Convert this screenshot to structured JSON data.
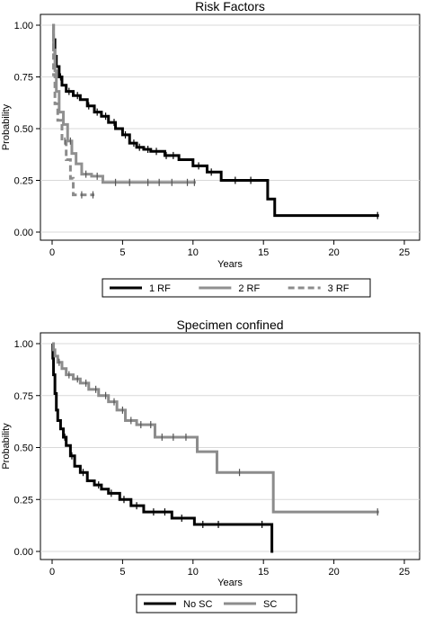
{
  "chart_data": [
    {
      "type": "line",
      "step": true,
      "title": "Risk Factors",
      "xlabel": "Years",
      "ylabel": "Probability",
      "xlim": [
        0,
        25
      ],
      "ylim": [
        0,
        1
      ],
      "xticks": [
        "0",
        "5",
        "10",
        "15",
        "20",
        "25"
      ],
      "yticks": [
        "0.00",
        "0.25",
        "0.50",
        "0.75",
        "1.00"
      ],
      "grid": true,
      "legend_position": "bottom",
      "series": [
        {
          "name": "1 RF",
          "color": "#000000",
          "dash": "solid",
          "x": [
            0,
            0.1,
            0.2,
            0.3,
            0.5,
            0.7,
            1.0,
            1.5,
            2.0,
            2.5,
            3.0,
            3.5,
            4.0,
            4.5,
            5.0,
            5.5,
            6.0,
            6.5,
            7.0,
            8.0,
            9.0,
            10.0,
            11.0,
            12.0,
            15.3,
            15.8,
            23.2
          ],
          "y": [
            1.0,
            0.93,
            0.85,
            0.8,
            0.75,
            0.71,
            0.68,
            0.66,
            0.64,
            0.61,
            0.58,
            0.56,
            0.53,
            0.5,
            0.47,
            0.43,
            0.41,
            0.4,
            0.39,
            0.37,
            0.35,
            0.32,
            0.29,
            0.25,
            0.16,
            0.08,
            0.08
          ],
          "censor_x": [
            0.6,
            1.2,
            1.8,
            2.6,
            3.2,
            3.8,
            4.4,
            5.2,
            5.8,
            6.2,
            6.8,
            7.4,
            8.1,
            8.6,
            10.4,
            11.3,
            13.0,
            14.1,
            23.1
          ]
        },
        {
          "name": "2 RF",
          "color": "#909090",
          "dash": "solid",
          "x": [
            0,
            0.1,
            0.2,
            0.3,
            0.5,
            0.8,
            1.1,
            1.4,
            1.7,
            2.1,
            2.8,
            3.6,
            10.2
          ],
          "y": [
            1.0,
            0.88,
            0.78,
            0.68,
            0.58,
            0.52,
            0.44,
            0.38,
            0.33,
            0.28,
            0.27,
            0.24,
            0.24
          ],
          "censor_x": [
            1.3,
            2.4,
            3.2,
            4.5,
            5.5,
            6.8,
            7.6,
            8.5,
            9.6,
            10.1
          ]
        },
        {
          "name": "3 RF",
          "color": "#8c8c8c",
          "dash": "dashed",
          "x": [
            0,
            0.1,
            0.2,
            0.4,
            0.7,
            1.0,
            1.3,
            1.5,
            3.0
          ],
          "y": [
            1.0,
            0.76,
            0.62,
            0.54,
            0.44,
            0.35,
            0.26,
            0.18,
            0.18
          ],
          "censor_x": [
            0.9,
            2.1,
            2.9
          ]
        }
      ]
    },
    {
      "type": "line",
      "step": true,
      "title": "Specimen confined",
      "xlabel": "Years",
      "ylabel": "Probability",
      "xlim": [
        0,
        25
      ],
      "ylim": [
        0,
        1
      ],
      "xticks": [
        "0",
        "5",
        "10",
        "15",
        "20",
        "25"
      ],
      "yticks": [
        "0.00",
        "0.25",
        "0.50",
        "0.75",
        "1.00"
      ],
      "grid": true,
      "legend_position": "bottom",
      "series": [
        {
          "name": "No SC",
          "color": "#000000",
          "dash": "solid",
          "x": [
            0,
            0.05,
            0.1,
            0.2,
            0.3,
            0.4,
            0.6,
            0.8,
            1.0,
            1.3,
            1.6,
            2.0,
            2.5,
            3.0,
            3.5,
            4.0,
            4.8,
            5.6,
            6.5,
            8.5,
            10.1,
            15.6,
            15.7
          ],
          "y": [
            1.0,
            0.93,
            0.85,
            0.76,
            0.68,
            0.63,
            0.59,
            0.55,
            0.51,
            0.46,
            0.41,
            0.38,
            0.34,
            0.32,
            0.3,
            0.28,
            0.25,
            0.22,
            0.19,
            0.16,
            0.13,
            0.0,
            0.0
          ],
          "censor_x": [
            0.9,
            1.4,
            2.2,
            3.3,
            4.2,
            5.1,
            6.0,
            7.2,
            8.0,
            9.2,
            10.7,
            11.8,
            14.9
          ]
        },
        {
          "name": "SC",
          "color": "#8c8c8c",
          "dash": "solid",
          "x": [
            0,
            0.1,
            0.2,
            0.4,
            0.7,
            1.0,
            1.5,
            2.0,
            2.6,
            3.3,
            4.0,
            4.6,
            5.2,
            6.0,
            7.3,
            10.3,
            11.7,
            15.7,
            23.2
          ],
          "y": [
            1.0,
            0.97,
            0.94,
            0.91,
            0.88,
            0.85,
            0.83,
            0.81,
            0.78,
            0.75,
            0.72,
            0.68,
            0.63,
            0.61,
            0.55,
            0.48,
            0.38,
            0.19,
            0.19
          ],
          "censor_x": [
            0.5,
            1.2,
            1.8,
            2.4,
            3.1,
            3.8,
            4.4,
            5.0,
            5.6,
            6.3,
            7.0,
            7.8,
            8.6,
            9.5,
            13.3,
            23.1
          ]
        }
      ]
    }
  ]
}
